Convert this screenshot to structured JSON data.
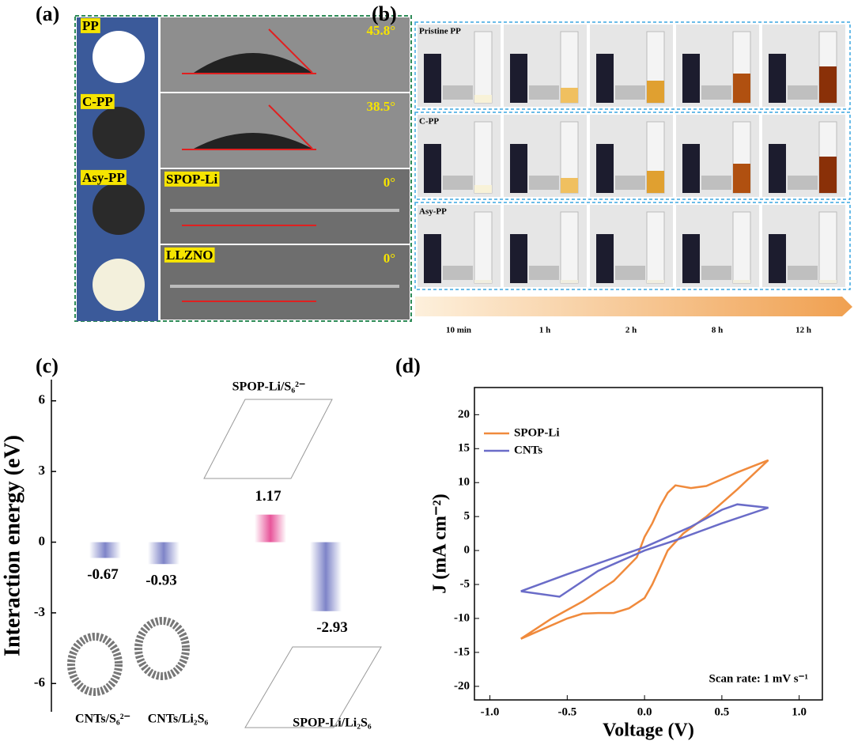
{
  "panel_a": {
    "label": "(a)",
    "rows": [
      {
        "sample": "PP",
        "angle": "45.8°"
      },
      {
        "sample": "C-PP",
        "angle": "38.5°"
      },
      {
        "sample": "Asy-PP",
        "material": "SPOP-Li",
        "angle": "0°"
      },
      {
        "material": "LLZNO",
        "angle": "0°"
      }
    ]
  },
  "panel_b": {
    "label": "(b)",
    "rows": [
      "Pristine PP",
      "C-PP",
      "Asy-PP"
    ],
    "times": [
      "10 min",
      "1 h",
      "2 h",
      "8 h",
      "12 h"
    ]
  },
  "chart_data": [
    {
      "type": "bar",
      "panel_label": "(c)",
      "ylabel": "Interaction energy (eV)",
      "categories": [
        "CNTs/S₆²⁻",
        "CNTs/Li₂S₆",
        "SPOP-Li/S₆²⁻",
        "SPOP-Li/Li₂S₆"
      ],
      "values": [
        -0.67,
        -0.93,
        1.17,
        -2.93
      ],
      "colors": [
        "#7e84c8",
        "#7e84c8",
        "#e8559a",
        "#7e84c8"
      ],
      "ylim": [
        -7.2,
        6.9
      ],
      "yticks": [
        6,
        3,
        0,
        -3,
        -6
      ]
    },
    {
      "type": "line",
      "panel_label": "(d)",
      "xlabel": "Voltage (V)",
      "ylabel": "J (mA cm⁻²)",
      "annotation": "Scan rate: 1 mV s⁻¹",
      "legend": "upper left",
      "xlim": [
        -1.1,
        1.15
      ],
      "ylim": [
        -22,
        24
      ],
      "xticks": [
        {
          "value": -1,
          "label": "-1.0"
        },
        {
          "value": -0.5,
          "label": "-0.5"
        },
        {
          "value": 0,
          "label": "0.0"
        },
        {
          "value": 0.5,
          "label": "0.5"
        },
        {
          "value": 1,
          "label": "1.0"
        }
      ],
      "yticks": [
        -20,
        -15,
        -10,
        -5,
        0,
        5,
        10,
        15,
        20
      ],
      "series": [
        {
          "name": "SPOP-Li",
          "color": "#f08a3c",
          "x": [
            -0.8,
            -0.6,
            -0.4,
            -0.2,
            -0.05,
            0.0,
            0.05,
            0.1,
            0.15,
            0.2,
            0.3,
            0.4,
            0.5,
            0.6,
            0.7,
            0.8,
            0.6,
            0.4,
            0.25,
            0.15,
            0.1,
            0.05,
            0.0,
            -0.1,
            -0.2,
            -0.3,
            -0.4,
            -0.5,
            -0.65,
            -0.8
          ],
          "values": [
            -13,
            -10,
            -7.5,
            -4.5,
            -1,
            2,
            4,
            6.5,
            8.5,
            9.6,
            9.2,
            9.5,
            10.5,
            11.5,
            12.4,
            13.3,
            9,
            5,
            2.5,
            0,
            -2.5,
            -5,
            -7,
            -8.5,
            -9.2,
            -9.2,
            -9.3,
            -10,
            -11.5,
            -13
          ]
        },
        {
          "name": "CNTs",
          "color": "#6a6cc8",
          "x": [
            -0.8,
            -0.5,
            0.0,
            0.3,
            0.5,
            0.6,
            0.8,
            0.5,
            0.2,
            0.0,
            -0.3,
            -0.55,
            -0.8
          ],
          "values": [
            -6,
            -3.5,
            0.5,
            3.5,
            6,
            6.8,
            6.3,
            4,
            1.5,
            0,
            -3,
            -6.8,
            -6
          ]
        }
      ]
    }
  ]
}
